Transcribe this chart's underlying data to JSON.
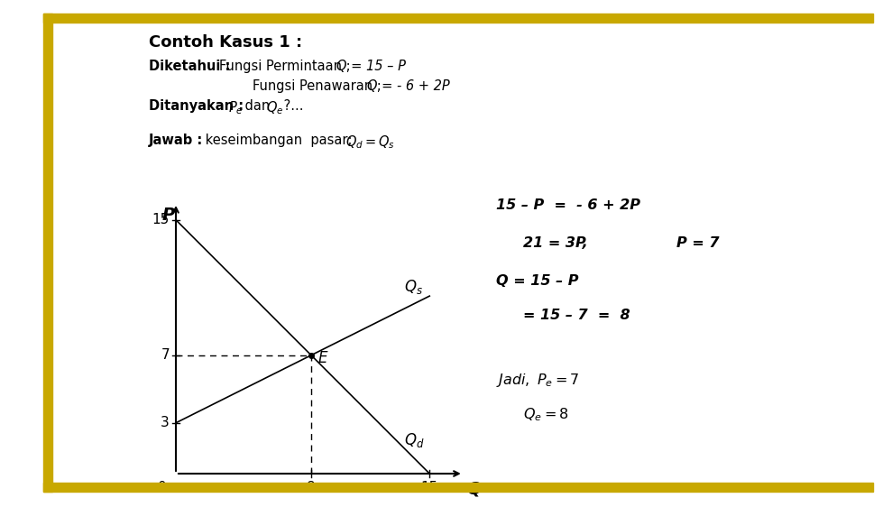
{
  "bg_color": "#ffffff",
  "border_color": "#c8a800",
  "title": "Contoh Kasus 1 :",
  "graph_xlim": [
    0,
    18
  ],
  "graph_ylim": [
    0,
    17
  ],
  "demand_Q": [
    0,
    15
  ],
  "demand_P": [
    15,
    0
  ],
  "supply_Q": [
    0,
    15
  ],
  "supply_P": [
    3,
    10.5
  ],
  "eq_Q": 8,
  "eq_P": 7,
  "y_ticks": [
    3,
    7,
    15
  ],
  "x_ticks": [
    8,
    15
  ]
}
